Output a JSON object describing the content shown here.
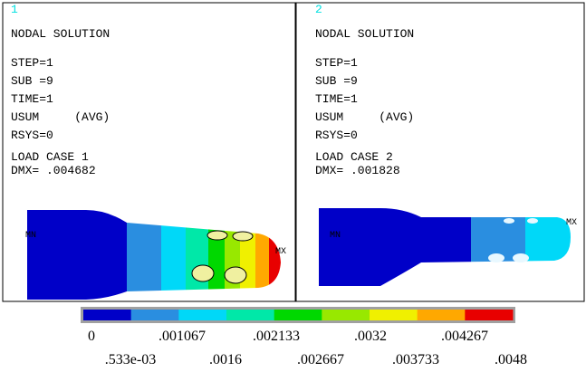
{
  "panels": [
    {
      "number": "1",
      "title": "NODAL SOLUTION",
      "lines": [
        "STEP=1",
        "SUB =9",
        "TIME=1",
        "USUM     (AVG)",
        "RSYS=0"
      ],
      "load_case": "LOAD CASE 1",
      "dmx": "DMX= .004682",
      "min_label": "MN",
      "max_label": "MX"
    },
    {
      "number": "2",
      "title": "NODAL SOLUTION",
      "lines": [
        "STEP=1",
        "SUB =9",
        "TIME=1",
        "USUM     (AVG)",
        "RSYS=0"
      ],
      "load_case": "LOAD CASE 2",
      "dmx": "DMX= .001828",
      "min_label": "MN",
      "max_label": "MX"
    }
  ],
  "legend": {
    "colors": [
      "#0000c8",
      "#2a8ee0",
      "#00d8f8",
      "#00e8a8",
      "#00d800",
      "#98e800",
      "#f0f000",
      "#ffa800",
      "#e80000"
    ],
    "labels_top": [
      "0",
      ".001067",
      ".002133",
      ".0032",
      ".004267"
    ],
    "labels_bottom": [
      ".533e-03",
      ".0016",
      ".002667",
      ".003733",
      ".0048"
    ]
  }
}
